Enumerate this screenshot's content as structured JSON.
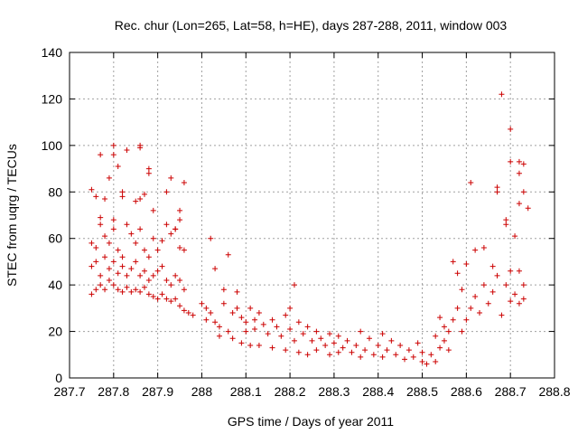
{
  "chart_data": {
    "type": "scatter",
    "title": "Rec. chur (Lon=265, Lat=58, h=HE), days 287-288, 2011, window 003",
    "xlabel": "GPS time / Days of year 2011",
    "ylabel": "STEC from uqrg / TECUs",
    "xlim": [
      287.7,
      288.8
    ],
    "ylim": [
      0,
      140
    ],
    "x_ticks": [
      287.7,
      287.8,
      287.9,
      288.0,
      288.1,
      288.2,
      288.3,
      288.4,
      288.5,
      288.6,
      288.7,
      288.8
    ],
    "x_tick_labels": [
      "287.7",
      "287.8",
      "287.9",
      "288",
      "288.1",
      "288.2",
      "288.3",
      "288.4",
      "288.5",
      "288.6",
      "288.7",
      "288.8"
    ],
    "y_ticks": [
      0,
      20,
      40,
      60,
      80,
      100,
      120,
      140
    ],
    "y_tick_labels": [
      "0",
      "20",
      "40",
      "60",
      "80",
      "100",
      "120",
      "140"
    ],
    "grid": true,
    "marker": "plus",
    "color": "#cc0000",
    "series": [
      {
        "points": [
          [
            287.75,
            81
          ],
          [
            287.76,
            78
          ],
          [
            287.77,
            96
          ],
          [
            287.78,
            77
          ],
          [
            287.79,
            86
          ],
          [
            287.8,
            100
          ],
          [
            287.8,
            96
          ],
          [
            287.81,
            91
          ],
          [
            287.82,
            80
          ],
          [
            287.82,
            78
          ],
          [
            287.83,
            98
          ],
          [
            287.85,
            76
          ],
          [
            287.86,
            100
          ],
          [
            287.86,
            99
          ],
          [
            287.86,
            77
          ],
          [
            287.87,
            79
          ],
          [
            287.88,
            90
          ],
          [
            287.88,
            88
          ],
          [
            287.89,
            72
          ],
          [
            287.92,
            80
          ],
          [
            287.93,
            86
          ],
          [
            287.94,
            64
          ],
          [
            287.95,
            72
          ],
          [
            287.95,
            68
          ],
          [
            287.96,
            84
          ],
          [
            288.02,
            60
          ],
          [
            288.61,
            84
          ],
          [
            288.67,
            82
          ],
          [
            288.67,
            80
          ],
          [
            288.68,
            122
          ],
          [
            288.69,
            68
          ],
          [
            288.69,
            66
          ],
          [
            288.7,
            107
          ],
          [
            288.7,
            93
          ],
          [
            288.71,
            61
          ],
          [
            288.72,
            93
          ],
          [
            288.72,
            88
          ],
          [
            288.72,
            75
          ],
          [
            288.73,
            92
          ],
          [
            288.73,
            80
          ],
          [
            288.74,
            73
          ],
          [
            287.75,
            58
          ],
          [
            287.76,
            56
          ],
          [
            287.77,
            69
          ],
          [
            287.77,
            66
          ],
          [
            287.78,
            61
          ],
          [
            287.79,
            58
          ],
          [
            287.8,
            68
          ],
          [
            287.8,
            64
          ],
          [
            287.81,
            55
          ],
          [
            287.82,
            52
          ],
          [
            287.83,
            66
          ],
          [
            287.84,
            62
          ],
          [
            287.85,
            58
          ],
          [
            287.86,
            64
          ],
          [
            287.87,
            55
          ],
          [
            287.88,
            52
          ],
          [
            287.89,
            60
          ],
          [
            287.9,
            55
          ],
          [
            287.91,
            59
          ],
          [
            287.92,
            66
          ],
          [
            287.93,
            62
          ],
          [
            287.94,
            64
          ],
          [
            287.95,
            56
          ],
          [
            287.96,
            55
          ],
          [
            287.75,
            48
          ],
          [
            287.76,
            50
          ],
          [
            287.77,
            44
          ],
          [
            287.78,
            52
          ],
          [
            287.79,
            47
          ],
          [
            287.8,
            50
          ],
          [
            287.81,
            45
          ],
          [
            287.82,
            48
          ],
          [
            287.83,
            44
          ],
          [
            287.84,
            47
          ],
          [
            287.85,
            50
          ],
          [
            287.86,
            44
          ],
          [
            287.87,
            46
          ],
          [
            287.88,
            42
          ],
          [
            287.89,
            44
          ],
          [
            287.9,
            46
          ],
          [
            287.91,
            48
          ],
          [
            287.92,
            42
          ],
          [
            287.93,
            40
          ],
          [
            287.94,
            44
          ],
          [
            287.95,
            42
          ],
          [
            287.96,
            38
          ],
          [
            287.75,
            36
          ],
          [
            287.76,
            38
          ],
          [
            287.77,
            40
          ],
          [
            287.78,
            38
          ],
          [
            287.79,
            42
          ],
          [
            287.8,
            40
          ],
          [
            287.81,
            38
          ],
          [
            287.82,
            37
          ],
          [
            287.83,
            39
          ],
          [
            287.84,
            37
          ],
          [
            287.85,
            38
          ],
          [
            287.86,
            37
          ],
          [
            287.87,
            39
          ],
          [
            287.88,
            36
          ],
          [
            287.89,
            35
          ],
          [
            287.9,
            34
          ],
          [
            287.91,
            36
          ],
          [
            287.92,
            34
          ],
          [
            287.93,
            33
          ],
          [
            287.94,
            34
          ],
          [
            287.95,
            31
          ],
          [
            287.96,
            29
          ],
          [
            287.97,
            28
          ],
          [
            287.98,
            27
          ],
          [
            288.0,
            32
          ],
          [
            288.01,
            30
          ],
          [
            288.01,
            25
          ],
          [
            288.02,
            28
          ],
          [
            288.03,
            24
          ],
          [
            288.03,
            47
          ],
          [
            288.04,
            22
          ],
          [
            288.04,
            18
          ],
          [
            288.05,
            32
          ],
          [
            288.05,
            38
          ],
          [
            288.06,
            20
          ],
          [
            288.06,
            53
          ],
          [
            288.07,
            28
          ],
          [
            288.07,
            17
          ],
          [
            288.08,
            30
          ],
          [
            288.08,
            37
          ],
          [
            288.09,
            26
          ],
          [
            288.09,
            15
          ],
          [
            288.1,
            24
          ],
          [
            288.1,
            20
          ],
          [
            288.11,
            30
          ],
          [
            288.11,
            14
          ],
          [
            288.12,
            25
          ],
          [
            288.12,
            21
          ],
          [
            288.13,
            28
          ],
          [
            288.13,
            14
          ],
          [
            288.14,
            23
          ],
          [
            288.15,
            19
          ],
          [
            288.16,
            25
          ],
          [
            288.16,
            13
          ],
          [
            288.17,
            22
          ],
          [
            288.18,
            18
          ],
          [
            288.19,
            27
          ],
          [
            288.19,
            12
          ],
          [
            288.2,
            30
          ],
          [
            288.2,
            21
          ],
          [
            288.21,
            40
          ],
          [
            288.21,
            16
          ],
          [
            288.22,
            24
          ],
          [
            288.22,
            11
          ],
          [
            288.23,
            19
          ],
          [
            288.24,
            22
          ],
          [
            288.24,
            10
          ],
          [
            288.25,
            16
          ],
          [
            288.26,
            20
          ],
          [
            288.26,
            12
          ],
          [
            288.27,
            17
          ],
          [
            288.28,
            14
          ],
          [
            288.29,
            19
          ],
          [
            288.29,
            10
          ],
          [
            288.3,
            15
          ],
          [
            288.31,
            18
          ],
          [
            288.31,
            11
          ],
          [
            288.32,
            13
          ],
          [
            288.33,
            16
          ],
          [
            288.34,
            11
          ],
          [
            288.35,
            14
          ],
          [
            288.36,
            20
          ],
          [
            288.36,
            9
          ],
          [
            288.37,
            12
          ],
          [
            288.38,
            17
          ],
          [
            288.39,
            10
          ],
          [
            288.4,
            14
          ],
          [
            288.41,
            19
          ],
          [
            288.41,
            9
          ],
          [
            288.42,
            12
          ],
          [
            288.43,
            16
          ],
          [
            288.44,
            10
          ],
          [
            288.45,
            14
          ],
          [
            288.46,
            8
          ],
          [
            288.47,
            12
          ],
          [
            288.48,
            9
          ],
          [
            288.49,
            15
          ],
          [
            288.5,
            7
          ],
          [
            288.5,
            11
          ],
          [
            288.51,
            6
          ],
          [
            288.52,
            10
          ],
          [
            288.53,
            7
          ],
          [
            288.53,
            18
          ],
          [
            288.54,
            13
          ],
          [
            288.54,
            26
          ],
          [
            288.55,
            16
          ],
          [
            288.55,
            22
          ],
          [
            288.56,
            20
          ],
          [
            288.56,
            12
          ],
          [
            288.57,
            50
          ],
          [
            288.57,
            25
          ],
          [
            288.58,
            45
          ],
          [
            288.58,
            30
          ],
          [
            288.59,
            38
          ],
          [
            288.59,
            20
          ],
          [
            288.6,
            49
          ],
          [
            288.6,
            25
          ],
          [
            288.61,
            30
          ],
          [
            288.62,
            55
          ],
          [
            288.62,
            35
          ],
          [
            288.63,
            28
          ],
          [
            288.64,
            40
          ],
          [
            288.64,
            56
          ],
          [
            288.65,
            32
          ],
          [
            288.66,
            37
          ],
          [
            288.66,
            48
          ],
          [
            288.67,
            44
          ],
          [
            288.68,
            27
          ],
          [
            288.69,
            40
          ],
          [
            288.7,
            46
          ],
          [
            288.7,
            33
          ],
          [
            288.71,
            36
          ],
          [
            288.72,
            32
          ],
          [
            288.72,
            46
          ],
          [
            288.73,
            40
          ],
          [
            288.73,
            34
          ]
        ]
      }
    ]
  }
}
